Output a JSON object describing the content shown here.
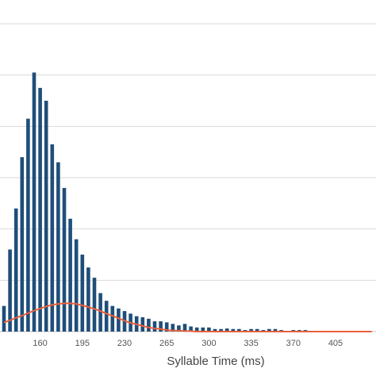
{
  "chart_data": {
    "type": "bar",
    "x_label": "Syllable Time (ms)",
    "categories": [
      null,
      null,
      null,
      null,
      null,
      null,
      "160",
      null,
      null,
      null,
      null,
      null,
      null,
      "195",
      null,
      null,
      null,
      null,
      null,
      null,
      "230",
      null,
      null,
      null,
      null,
      null,
      null,
      "265",
      null,
      null,
      null,
      null,
      null,
      null,
      "300",
      null,
      null,
      null,
      null,
      null,
      null,
      "335",
      null,
      null,
      null,
      null,
      null,
      null,
      "370",
      null,
      null,
      null,
      null,
      null,
      null,
      "405",
      null,
      null,
      null,
      null,
      null,
      null
    ],
    "values": [
      0.5,
      1.6,
      2.4,
      3.4,
      4.15,
      5.05,
      4.75,
      4.5,
      3.65,
      3.3,
      2.8,
      2.2,
      1.8,
      1.5,
      1.25,
      1.05,
      0.75,
      0.6,
      0.5,
      0.45,
      0.4,
      0.35,
      0.3,
      0.28,
      0.25,
      0.2,
      0.2,
      0.18,
      0.15,
      0.12,
      0.15,
      0.1,
      0.08,
      0.08,
      0.08,
      0.05,
      0.05,
      0.06,
      0.05,
      0.05,
      0.03,
      0.05,
      0.05,
      0.03,
      0.05,
      0.05,
      0.03,
      0,
      0.03,
      0.03,
      0.03,
      0,
      0,
      0,
      0,
      0,
      0,
      0,
      0,
      0,
      0,
      0
    ],
    "color": "#1f4e79",
    "curve": {
      "color": "#e8603c",
      "values": [
        0.18,
        0.22,
        0.27,
        0.31,
        0.36,
        0.41,
        0.45,
        0.49,
        0.52,
        0.54,
        0.55,
        0.55,
        0.54,
        0.51,
        0.48,
        0.44,
        0.4,
        0.35,
        0.31,
        0.26,
        0.21,
        0.17,
        0.14,
        0.11,
        0.08,
        0.06,
        0.05,
        0.03,
        0.02,
        0.02,
        0.01,
        0.01,
        0,
        0,
        0,
        0,
        0,
        0,
        0,
        0,
        0,
        0,
        0,
        0,
        0,
        0,
        0,
        0,
        0,
        0,
        0,
        0,
        0,
        0,
        0,
        0,
        0,
        0,
        0,
        0,
        0,
        0
      ]
    },
    "ylim": [
      0,
      6
    ],
    "grid_values": [
      1,
      2,
      3,
      4,
      5,
      6
    ],
    "grid": true
  }
}
